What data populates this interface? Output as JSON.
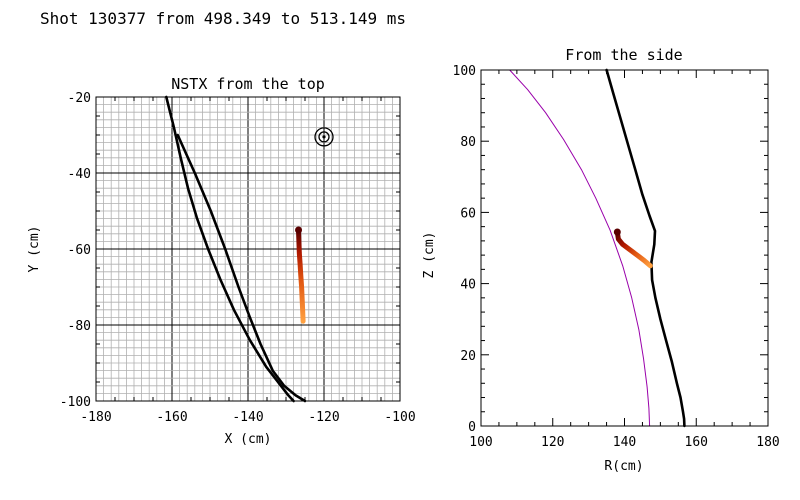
{
  "figure_title": "Shot 130377 from 498.349 to 513.149 ms",
  "chart_data": [
    {
      "type": "line",
      "title": "NSTX from the top",
      "xlabel": "X (cm)",
      "ylabel": "Y (cm)",
      "xlim": [
        -180,
        -100
      ],
      "ylim": [
        -100,
        -20
      ],
      "xticks": [
        "-180",
        "-160",
        "-140",
        "-120",
        "-100"
      ],
      "yticks": [
        "-100",
        "-80",
        "-60",
        "-40",
        "-20"
      ],
      "grid": "fine grid every 2 cm, major lines every 20 cm",
      "marker": {
        "shape": "target",
        "x": -120,
        "y": -30.5
      },
      "series": [
        {
          "color": "#000000",
          "x": [
            -161.5,
            -159.5,
            -157.7,
            -155.8,
            -153.4,
            -150.5,
            -147.3,
            -143.7,
            -139.5,
            -135.2,
            -131.7,
            -129.4,
            -128.0
          ],
          "y": [
            -20,
            -28,
            -36,
            -44,
            -52,
            -60,
            -68,
            -76,
            -84,
            -91,
            -95.5,
            -98.5,
            -100
          ]
        },
        {
          "color": "#000000",
          "x": [
            -158.5,
            -154.0,
            -149.8,
            -146.0,
            -142.5,
            -139.5,
            -136.7,
            -133.5,
            -130.5,
            -127.5,
            -125.0
          ],
          "y": [
            -30,
            -40,
            -50,
            -60,
            -70,
            -78,
            -85,
            -92,
            -96,
            -98.5,
            -100
          ]
        },
        {
          "color": "gradient #7a0000 to #ffa040",
          "x": [
            -126.7,
            -126.6,
            -126.5,
            -126.3,
            -126.1,
            -125.9,
            -125.7,
            -125.5
          ],
          "y": [
            -55,
            -58,
            -61,
            -64,
            -67,
            -70,
            -74,
            -79
          ]
        }
      ]
    },
    {
      "type": "line",
      "title": "From the side",
      "xlabel": "R(cm)",
      "ylabel": "Z (cm)",
      "xlim": [
        100,
        180
      ],
      "ylim": [
        0,
        100
      ],
      "xticks": [
        "100",
        "120",
        "140",
        "160",
        "180"
      ],
      "yticks": [
        "0",
        "20",
        "40",
        "60",
        "80",
        "100"
      ],
      "grid": "off",
      "series": [
        {
          "color": "#9900aa",
          "x": [
            108,
            113,
            118,
            123,
            128,
            132,
            136,
            139.5,
            142,
            144,
            145.3,
            146.3,
            146.8,
            147
          ],
          "y": [
            100,
            94.5,
            88,
            80.5,
            72,
            64,
            55,
            45,
            36,
            27,
            19,
            11,
            5,
            0
          ]
        },
        {
          "color": "#000000",
          "x": [
            135,
            137,
            139,
            141,
            143,
            145,
            147,
            148.5,
            148.3,
            147.5,
            147.7,
            148.6,
            150.0,
            151.6,
            153.2,
            154.6,
            155.6,
            156.3,
            156.6,
            156.7
          ],
          "y": [
            100,
            93,
            86,
            79,
            72,
            65,
            59,
            54.8,
            51,
            46,
            41,
            36,
            30,
            24,
            18,
            12,
            8,
            4,
            2,
            0
          ]
        },
        {
          "color": "gradient #7a0000 to #ffa040",
          "x": [
            138,
            138.3,
            139.5,
            141.5,
            143.5,
            145.5,
            147.2
          ],
          "y": [
            54.5,
            52.5,
            51,
            49.5,
            48,
            46.5,
            45
          ]
        }
      ]
    }
  ]
}
